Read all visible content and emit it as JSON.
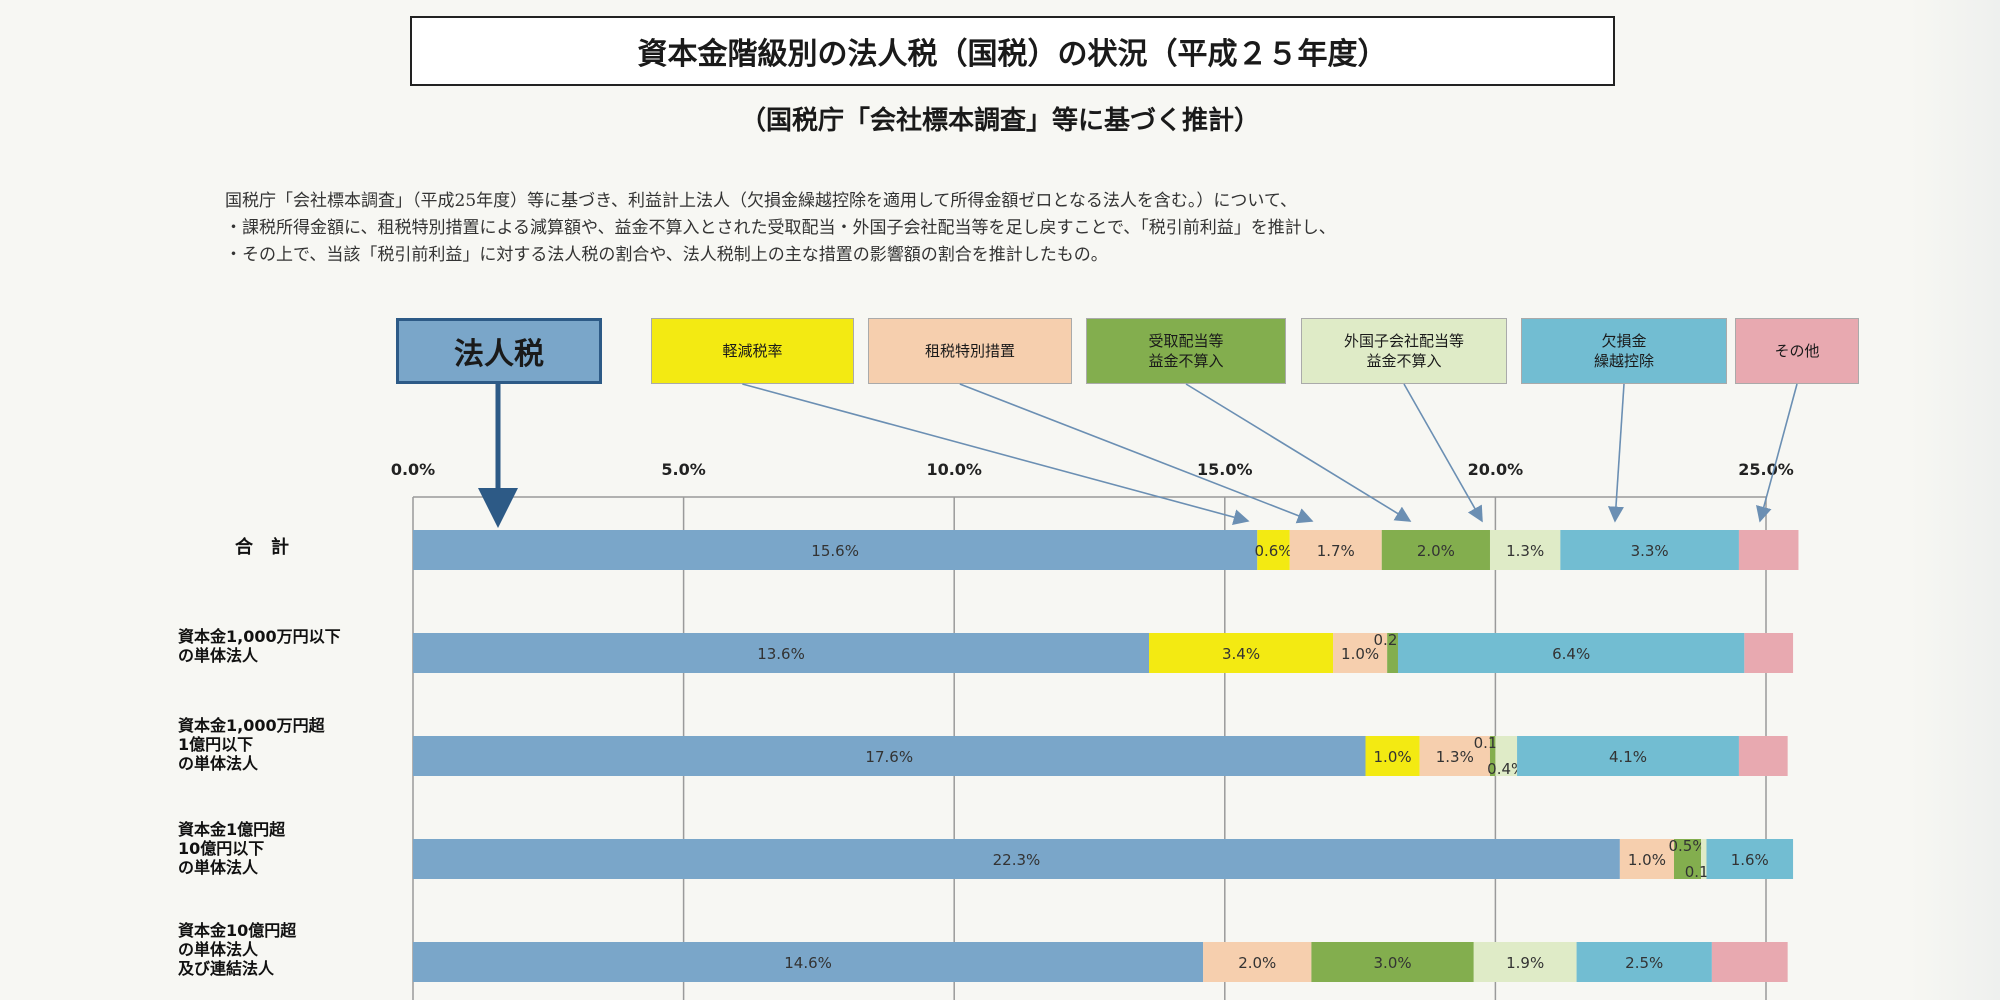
{
  "title": "資本金階級別の法人税（国税）の状況（平成２５年度）",
  "subtitle": "（国税庁「会社標本調査」等に基づく推計）",
  "description": [
    "国税庁「会社標本調査」（平成25年度）等に基づき、利益計上法人（欠損金繰越控除を適用して所得金額ゼロとなる法人を含む。）について、",
    "・課税所得金額に、租税特別措置による減算額や、益金不算入とされた受取配当・外国子会社配当等を足し戻すことで、「税引前利益」を推計し、",
    "・その上で、当該「税引前利益」に対する法人税の割合や、法人税制上の主な措置の影響額の割合を推計したもの。"
  ],
  "main_label": "法人税",
  "legend": [
    {
      "label": "軽減税率",
      "color": "#f3ea12"
    },
    {
      "label": "租税特別措置",
      "color": "#f6cfae"
    },
    {
      "label": "受取配当等\n益金不算入",
      "color": "#83ae4e"
    },
    {
      "label": "外国子会社配当等\n益金不算入",
      "color": "#dfebc7"
    },
    {
      "label": "欠損金\n繰越控除",
      "color": "#72bdd2"
    },
    {
      "label": "その他",
      "color": "#e8a9b0"
    }
  ],
  "chart_data": {
    "type": "bar",
    "orientation": "horizontal",
    "stacked": true,
    "xlim": [
      0,
      25
    ],
    "x_ticks": [
      "0.0%",
      "5.0%",
      "10.0%",
      "15.0%",
      "20.0%",
      "25.0%"
    ],
    "gridlines": true,
    "categories": [
      "合　計",
      "資本金1,000万円以下\nの単体法人",
      "資本金1,000万円超\n1億円以下\nの単体法人",
      "資本金1億円超\n10億円以下\nの単体法人",
      "資本金10億円超\nの単体法人\n及び連結法人"
    ],
    "series": [
      {
        "name": "法人税",
        "color": "#7aa6c9",
        "values": [
          15.6,
          13.6,
          17.6,
          22.3,
          14.6
        ],
        "labels": [
          "15.6%",
          "13.6%",
          "17.6%",
          "22.3%",
          "14.6%"
        ]
      },
      {
        "name": "軽減税率",
        "color": "#f3ea12",
        "values": [
          0.6,
          3.4,
          1.0,
          0,
          0
        ],
        "labels": [
          "0.6%",
          "3.4%",
          "1.0%",
          "",
          ""
        ]
      },
      {
        "name": "租税特別措置",
        "color": "#f6cfae",
        "values": [
          1.7,
          1.0,
          1.3,
          1.0,
          2.0
        ],
        "labels": [
          "1.7%",
          "1.0%",
          "1.3%",
          "1.0%",
          "2.0%"
        ]
      },
      {
        "name": "受取配当等益金不算入",
        "color": "#83ae4e",
        "values": [
          2.0,
          0.2,
          0.1,
          0.5,
          3.0
        ],
        "labels": [
          "2.0%",
          "0.2%",
          "0.1%",
          "0.5%",
          "3.0%"
        ]
      },
      {
        "name": "外国子会社配当等益金不算入",
        "color": "#dfebc7",
        "values": [
          1.3,
          0,
          0.4,
          0.1,
          1.9
        ],
        "labels": [
          "1.3%",
          "",
          "0.4%",
          "0.1%",
          "1.9%"
        ]
      },
      {
        "name": "欠損金繰越控除",
        "color": "#72bdd2",
        "values": [
          3.3,
          6.4,
          4.1,
          1.6,
          2.5
        ],
        "labels": [
          "3.3%",
          "6.4%",
          "4.1%",
          "1.6%",
          "2.5%"
        ]
      },
      {
        "name": "その他",
        "color": "#e8a9b0",
        "values": [
          1.1,
          0.9,
          0.9,
          0,
          1.4
        ],
        "labels": [
          "",
          "",
          "",
          "",
          ""
        ]
      }
    ]
  }
}
